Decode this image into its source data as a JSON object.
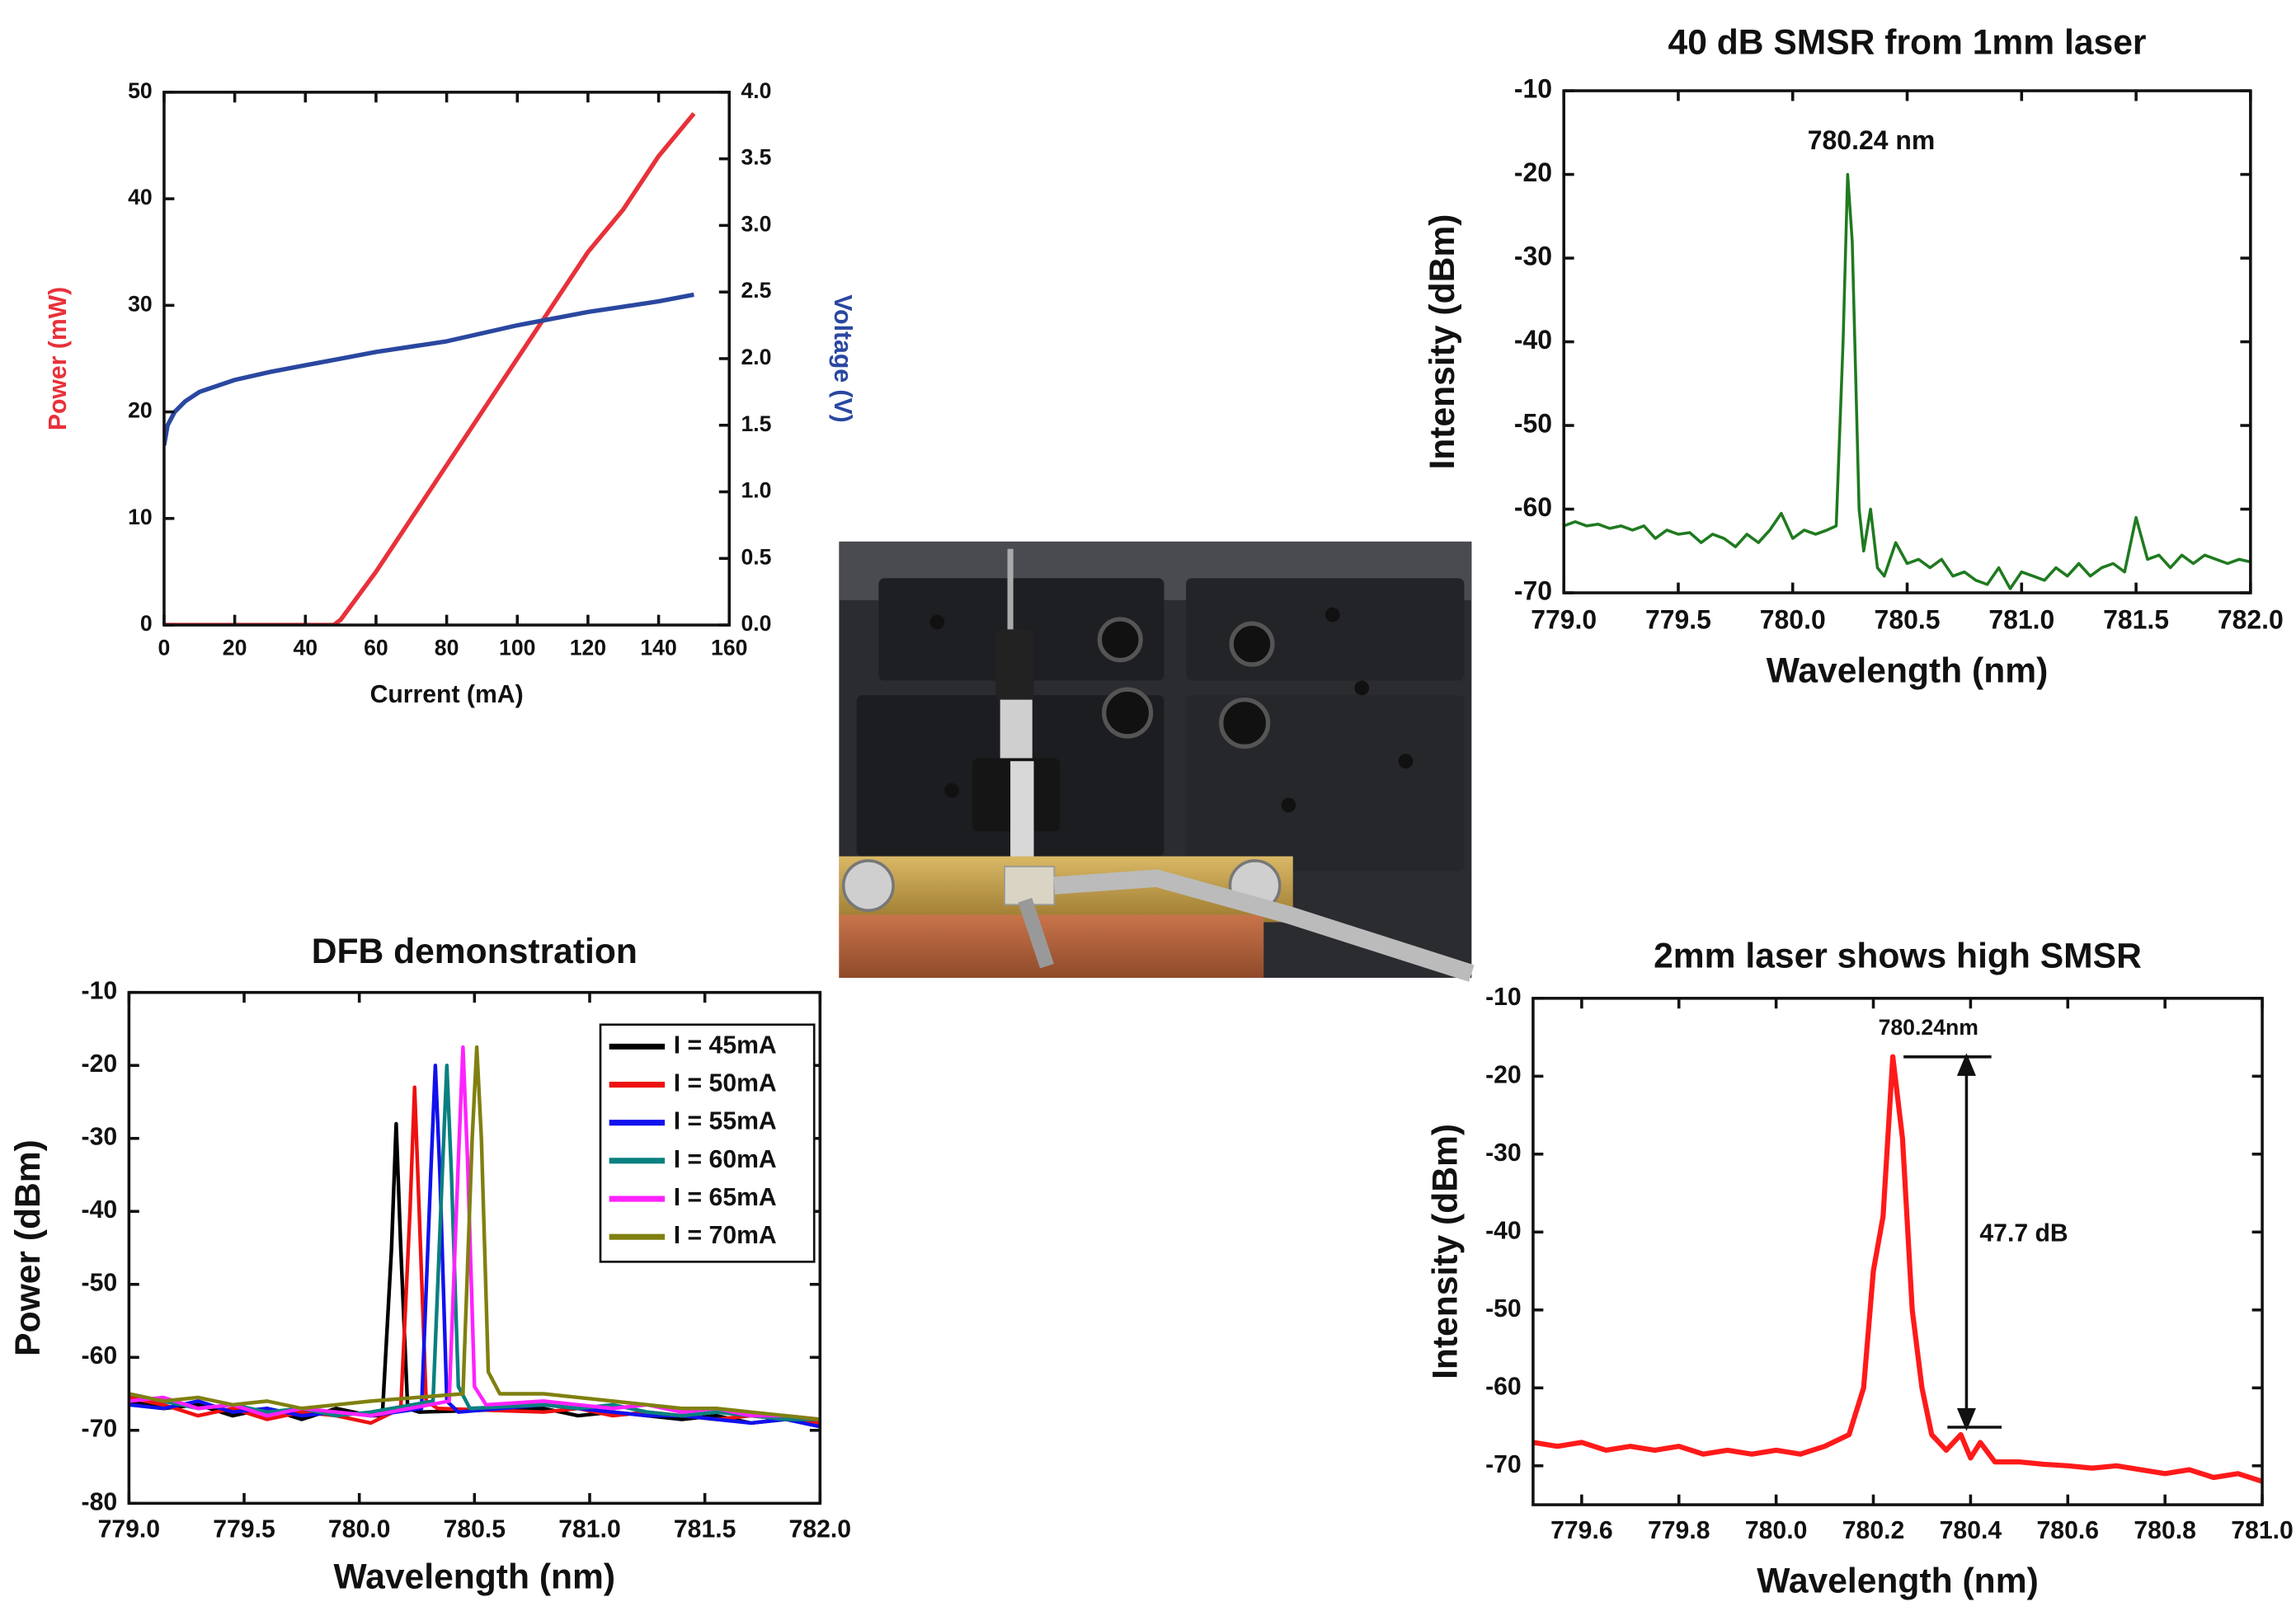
{
  "chart_data": [
    {
      "type": "line",
      "xlabel": "Current (mA)",
      "ylabel": "Power (mW)",
      "y2label": "Voltage (V)",
      "xlim": [
        0,
        160
      ],
      "xticks": [
        0,
        20,
        40,
        60,
        80,
        100,
        120,
        140,
        160
      ],
      "ylim": [
        0,
        50
      ],
      "yticks": [
        0,
        10,
        20,
        30,
        40,
        50
      ],
      "y2lim": [
        0,
        4
      ],
      "y2ticks": [
        {
          "value": 0,
          "label": "0.0"
        },
        0.5,
        {
          "value": 1,
          "label": "1.0"
        },
        1.5,
        {
          "value": 2,
          "label": "2.0"
        },
        2.5,
        {
          "value": 3,
          "label": "3.0"
        },
        3.5,
        {
          "value": 4,
          "label": "4.0"
        }
      ],
      "series": [
        {
          "color": "#e8313a",
          "x": [
            0,
            10,
            20,
            30,
            40,
            48,
            50,
            60,
            70,
            80,
            90,
            100,
            110,
            120,
            130,
            140,
            150
          ],
          "values": [
            0,
            0,
            0,
            0,
            0,
            0,
            0.5,
            5,
            10,
            15,
            20,
            25,
            30,
            35,
            39,
            44,
            48
          ]
        },
        {
          "color": "#2a47a0",
          "axis": "y2",
          "x": [
            0,
            1,
            3,
            6,
            10,
            20,
            30,
            40,
            50,
            60,
            80,
            100,
            110,
            120,
            130,
            140,
            150
          ],
          "values": [
            1.35,
            1.5,
            1.6,
            1.68,
            1.75,
            1.84,
            1.9,
            1.95,
            2.0,
            2.05,
            2.13,
            2.25,
            2.3,
            2.35,
            2.39,
            2.43,
            2.48
          ]
        }
      ]
    },
    {
      "type": "line",
      "title": "40 dB SMSR from 1mm laser",
      "xlabel": "Wavelength (nm)",
      "ylabel": "Intensity (dBm)",
      "xlim": [
        779,
        782
      ],
      "xticks": [
        {
          "value": 779,
          "label": "779.0"
        },
        779.5,
        {
          "value": 780,
          "label": "780.0"
        },
        780.5,
        {
          "value": 781,
          "label": "781.0"
        },
        781.5,
        {
          "value": 782,
          "label": "782.0"
        }
      ],
      "ylim": [
        -70,
        -10
      ],
      "yticks": [
        -10,
        -20,
        -30,
        -40,
        -50,
        -60,
        -70
      ],
      "annotations": [
        "780.24 nm"
      ],
      "series": [
        {
          "color": "#1f7a1f",
          "x": [
            779.0,
            779.05,
            779.1,
            779.15,
            779.2,
            779.25,
            779.3,
            779.35,
            779.4,
            779.45,
            779.5,
            779.55,
            779.6,
            779.65,
            779.7,
            779.75,
            779.8,
            779.85,
            779.9,
            779.95,
            780.0,
            780.05,
            780.1,
            780.15,
            780.19,
            780.22,
            780.24,
            780.26,
            780.29,
            780.31,
            780.34,
            780.37,
            780.4,
            780.45,
            780.5,
            780.55,
            780.6,
            780.65,
            780.7,
            780.75,
            780.8,
            780.85,
            780.9,
            780.95,
            781.0,
            781.05,
            781.1,
            781.15,
            781.2,
            781.25,
            781.3,
            781.35,
            781.4,
            781.45,
            781.5,
            781.55,
            781.6,
            781.65,
            781.7,
            781.75,
            781.8,
            781.85,
            781.9,
            781.95,
            782.0
          ],
          "values": [
            -62,
            -61.5,
            -62,
            -61.8,
            -62.3,
            -62,
            -62.5,
            -62,
            -63.5,
            -62.5,
            -63,
            -62.8,
            -64,
            -63,
            -63.5,
            -64.5,
            -63,
            -64,
            -62.5,
            -60.5,
            -63.5,
            -62.5,
            -63,
            -62.5,
            -62,
            -40,
            -20,
            -28,
            -60,
            -65,
            -60,
            -67,
            -68,
            -64,
            -66.5,
            -66,
            -67,
            -66,
            -68,
            -67.5,
            -68.5,
            -69,
            -67,
            -69.5,
            -67.5,
            -68,
            -68.5,
            -67,
            -68,
            -66.5,
            -68,
            -67,
            -66.5,
            -67.5,
            -61,
            -66,
            -65.5,
            -67,
            -65.5,
            -66.5,
            -65.5,
            -66,
            -66.5,
            -66,
            -66.3
          ]
        }
      ]
    },
    {
      "type": "line",
      "title": "DFB demonstration",
      "xlabel": "Wavelength (nm)",
      "ylabel": "Power (dBm)",
      "legend": "top-right",
      "xlim": [
        779,
        782
      ],
      "xticks": [
        {
          "value": 779,
          "label": "779.0"
        },
        779.5,
        {
          "value": 780,
          "label": "780.0"
        },
        780.5,
        {
          "value": 781,
          "label": "781.0"
        },
        781.5,
        {
          "value": 782,
          "label": "782.0"
        }
      ],
      "ylim": [
        -80,
        -10
      ],
      "yticks": [
        -10,
        -20,
        -30,
        -40,
        -50,
        -60,
        -70,
        -80
      ],
      "series": [
        {
          "name": "I = 45mA",
          "color": "#000000",
          "x": [
            779.0,
            779.15,
            779.3,
            779.45,
            779.6,
            779.75,
            779.9,
            780.05,
            780.1,
            780.14,
            780.16,
            780.18,
            780.21,
            780.26,
            780.8,
            780.95,
            781.1,
            781.25,
            781.4,
            781.55,
            781.7,
            781.85,
            782.0
          ],
          "values": [
            -66,
            -67,
            -66.5,
            -68,
            -67,
            -68.5,
            -67,
            -68,
            -68,
            -45,
            -28,
            -45,
            -67,
            -67.5,
            -67,
            -68,
            -67.5,
            -68,
            -68.5,
            -68,
            -69,
            -68.5,
            -69
          ]
        },
        {
          "name": "I = 50mA",
          "color": "#ee1111",
          "x": [
            779.0,
            779.15,
            779.3,
            779.45,
            779.6,
            779.75,
            779.9,
            780.05,
            780.18,
            780.22,
            780.24,
            780.26,
            780.29,
            780.34,
            780.8,
            780.95,
            781.1,
            781.25,
            781.4,
            781.55,
            781.7,
            781.85,
            782.0
          ],
          "values": [
            -65.5,
            -66.5,
            -68,
            -67,
            -68.5,
            -67.5,
            -68,
            -69,
            -67,
            -40,
            -23,
            -40,
            -66,
            -67,
            -67.5,
            -67,
            -68,
            -67.5,
            -68,
            -68.5,
            -68,
            -68.5,
            -69
          ]
        },
        {
          "name": "I = 55mA",
          "color": "#1111ee",
          "x": [
            779.0,
            779.15,
            779.3,
            779.45,
            779.6,
            779.75,
            779.9,
            780.05,
            780.27,
            780.31,
            780.33,
            780.35,
            780.38,
            780.43,
            780.8,
            780.95,
            781.1,
            781.25,
            781.4,
            781.55,
            781.7,
            781.85,
            782.0
          ],
          "values": [
            -66.5,
            -67,
            -66,
            -67.5,
            -67,
            -68,
            -67.5,
            -68,
            -67,
            -35,
            -20,
            -35,
            -66,
            -67.5,
            -66.5,
            -67,
            -67.5,
            -68,
            -68,
            -68.5,
            -69,
            -68.5,
            -69.5
          ]
        },
        {
          "name": "I = 60mA",
          "color": "#0a8080",
          "x": [
            779.0,
            779.15,
            779.3,
            779.45,
            779.6,
            779.75,
            779.9,
            780.05,
            780.32,
            780.36,
            780.38,
            780.4,
            780.43,
            780.48,
            780.8,
            780.95,
            781.1,
            781.25,
            781.4,
            781.55,
            781.7,
            781.85,
            782.0
          ],
          "values": [
            -65,
            -66,
            -67,
            -66.5,
            -67.5,
            -67,
            -68,
            -67.5,
            -66,
            -35,
            -20,
            -35,
            -64,
            -67,
            -66.5,
            -67,
            -66.5,
            -67.5,
            -68,
            -67.5,
            -68,
            -68.5,
            -68.5
          ]
        },
        {
          "name": "I = 65mA",
          "color": "#ff22ff",
          "x": [
            779.0,
            779.15,
            779.3,
            779.45,
            779.6,
            779.75,
            779.9,
            780.05,
            780.39,
            780.43,
            780.45,
            780.47,
            780.5,
            780.55,
            780.8,
            780.95,
            781.1,
            781.25,
            781.4,
            781.55,
            781.7,
            781.85,
            782.0
          ],
          "values": [
            -66,
            -65.5,
            -67,
            -66.5,
            -68,
            -67,
            -67.5,
            -68,
            -66,
            -33,
            -17.5,
            -33,
            -64,
            -66.5,
            -66,
            -66.5,
            -67,
            -66.5,
            -67.5,
            -67,
            -68,
            -68,
            -68.5
          ]
        },
        {
          "name": "I = 70mA",
          "color": "#808010",
          "x": [
            779.0,
            779.15,
            779.3,
            779.45,
            779.6,
            779.75,
            779.9,
            780.05,
            780.45,
            780.49,
            780.51,
            780.53,
            780.56,
            780.61,
            780.8,
            780.95,
            781.1,
            781.25,
            781.4,
            781.55,
            781.7,
            781.85,
            782.0
          ],
          "values": [
            -65,
            -66,
            -65.5,
            -66.5,
            -66,
            -67,
            -66.5,
            -66,
            -65,
            -30,
            -17.5,
            -30,
            -62,
            -65,
            -65,
            -65.5,
            -66,
            -66.5,
            -67,
            -67,
            -67.5,
            -68,
            -68.5
          ]
        }
      ]
    },
    {
      "type": "line",
      "title": "2mm laser shows high SMSR",
      "xlabel": "Wavelength (nm)",
      "ylabel": "Intensity (dBm)",
      "xlim": [
        779.5,
        781.0
      ],
      "xticks": [
        779.6,
        779.8,
        {
          "value": 780,
          "label": "780.0"
        },
        780.2,
        780.4,
        780.6,
        780.8,
        {
          "value": 781,
          "label": "781.0"
        }
      ],
      "ylim": [
        -75,
        -10
      ],
      "yticks": [
        -10,
        -20,
        -30,
        -40,
        -50,
        -60,
        -70
      ],
      "annotations": [
        "780.24nm",
        "47.7 dB"
      ],
      "series": [
        {
          "color": "#ff1a1a",
          "x": [
            779.5,
            779.55,
            779.6,
            779.65,
            779.7,
            779.75,
            779.8,
            779.85,
            779.9,
            779.95,
            780.0,
            780.05,
            780.1,
            780.15,
            780.18,
            780.2,
            780.22,
            780.24,
            780.26,
            780.28,
            780.3,
            780.32,
            780.35,
            780.38,
            780.4,
            780.42,
            780.45,
            780.5,
            780.55,
            780.6,
            780.65,
            780.7,
            780.75,
            780.8,
            780.85,
            780.9,
            780.95,
            781.0
          ],
          "values": [
            -67,
            -67.5,
            -67,
            -68,
            -67.5,
            -68,
            -67.5,
            -68.5,
            -68,
            -68.5,
            -68,
            -68.5,
            -67.5,
            -66,
            -60,
            -45,
            -38,
            -17.5,
            -28,
            -50,
            -60,
            -66,
            -68,
            -66,
            -69,
            -67,
            -69.5,
            -69.5,
            -69.8,
            -70,
            -70.3,
            -70,
            -70.5,
            -71,
            -70.5,
            -71.5,
            -71,
            -72
          ]
        }
      ]
    }
  ]
}
